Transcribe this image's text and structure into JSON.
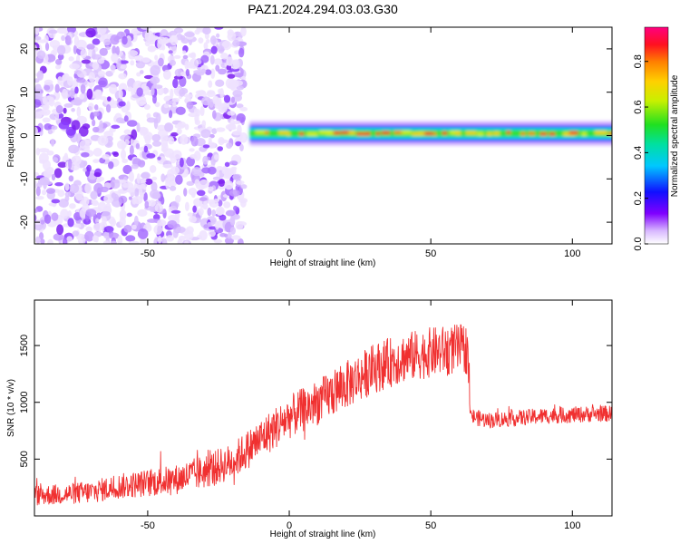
{
  "chart_data": [
    {
      "type": "heatmap",
      "title": "PAZ1.2024.294.03.03.G30",
      "xlabel": "Height of straight line (km)",
      "ylabel": "Frequency (Hz)",
      "xlim": [
        -90,
        114
      ],
      "ylim": [
        -25,
        25
      ],
      "xticks": [
        -50,
        0,
        50,
        100
      ],
      "yticks": [
        -20,
        -10,
        0,
        10,
        20
      ],
      "colorbar": {
        "label": "Normalized spectral amplitude",
        "range": [
          0,
          0.95
        ],
        "ticks": [
          0.0,
          0.2,
          0.4,
          0.6,
          0.8
        ],
        "tick_labels": [
          "0.0",
          "0.2",
          "0.4",
          "0.6",
          "0.8"
        ],
        "colormap": "rainbow (white-violet-blue-cyan-green-yellow-orange-red-magenta)"
      },
      "regions": [
        {
          "x_range": [
            -90,
            -14
          ],
          "description": "diffuse low-amplitude noise across full frequency band",
          "amplitude_range": [
            0.0,
            0.15
          ]
        },
        {
          "x_range": [
            -14,
            114
          ],
          "frequency_center": 0.5,
          "frequency_halfwidth": 1.5,
          "amplitude_range": [
            0.3,
            0.9
          ]
        }
      ]
    },
    {
      "type": "line",
      "xlabel": "Height of straight line (km)",
      "ylabel": "SNR (10 * v/v)",
      "xlim": [
        -90,
        114
      ],
      "ylim": [
        0,
        1900
      ],
      "xticks": [
        -50,
        0,
        50,
        100
      ],
      "yticks": [
        500,
        1000,
        1500
      ],
      "color": "#f03030",
      "series": [
        {
          "x": [
            -90,
            -80,
            -70,
            -60,
            -50,
            -40,
            -30,
            -20,
            -10,
            0,
            10,
            20,
            30,
            40,
            50,
            60,
            63,
            64,
            70,
            80,
            90,
            100,
            110,
            114
          ],
          "y": [
            180,
            190,
            210,
            260,
            290,
            320,
            390,
            480,
            680,
            870,
            1000,
            1150,
            1300,
            1390,
            1440,
            1470,
            1470,
            880,
            840,
            860,
            880,
            890,
            900,
            900
          ],
          "noise_amplitude": [
            90,
            90,
            100,
            110,
            120,
            130,
            150,
            160,
            180,
            190,
            200,
            210,
            220,
            220,
            220,
            220,
            220,
            70,
            70,
            70,
            70,
            70,
            70,
            70
          ]
        }
      ]
    }
  ]
}
